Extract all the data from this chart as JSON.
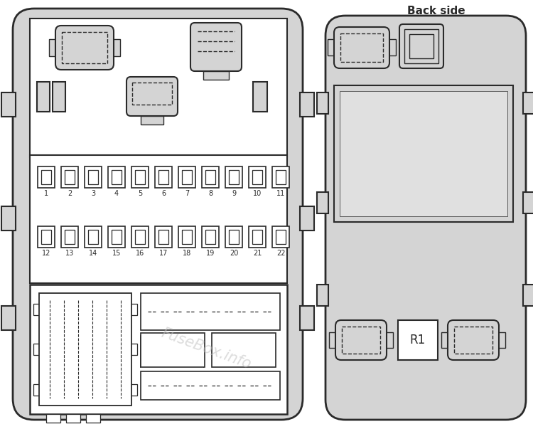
{
  "bg": "#d4d4d4",
  "white": "#ffffff",
  "dark": "#2a2a2a",
  "back_label": "Back side",
  "watermark": "FuseBox.info",
  "row1": [
    1,
    2,
    3,
    4,
    5,
    6,
    7,
    8,
    9,
    10,
    11
  ],
  "row2": [
    12,
    13,
    14,
    15,
    16,
    17,
    18,
    19,
    20,
    21,
    22
  ]
}
